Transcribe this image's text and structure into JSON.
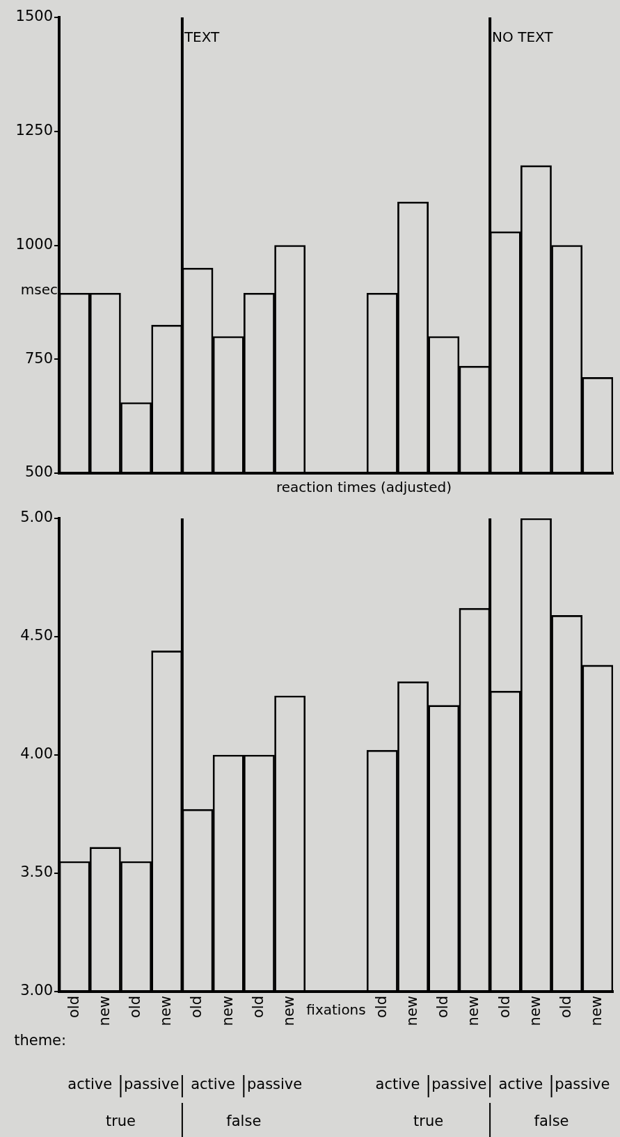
{
  "chart_data": [
    {
      "type": "bar",
      "xlabel": "reaction times (adjusted)",
      "ylabel": "msec",
      "categories": [
        null,
        null,
        null,
        null,
        null,
        null,
        null,
        null,
        null,
        null,
        null,
        null,
        null,
        null,
        null,
        null,
        null,
        null
      ],
      "series": [
        {
          "color": "#000000",
          "values": [
            895,
            895,
            655,
            825,
            950,
            800,
            895,
            1000,
            null,
            null,
            895,
            1095,
            800,
            735,
            1030,
            1175,
            1000,
            710
          ]
        }
      ],
      "ylim": [
        500,
        1500
      ],
      "yticks": [
        500,
        750,
        1000,
        1250,
        1500
      ],
      "grid": false,
      "legend": false,
      "tick_labels": "y",
      "annotations": [
        "TEXT",
        "NO TEXT"
      ]
    },
    {
      "type": "bar",
      "xlabel": "fixations",
      "categories": [
        "old",
        "new",
        "old",
        "new",
        "old",
        "new",
        "old",
        "new",
        null,
        null,
        "old",
        "new",
        "old",
        "new",
        "old",
        "new",
        "old",
        "new"
      ],
      "series": [
        {
          "color": "#000000",
          "values": [
            3.55,
            3.61,
            3.55,
            4.44,
            3.77,
            4.0,
            4.0,
            4.25,
            null,
            null,
            4.02,
            4.31,
            4.21,
            4.62,
            4.27,
            5.0,
            4.59,
            4.38
          ]
        }
      ],
      "ylim": [
        3,
        5
      ],
      "yticks": [
        {
          "value": 3,
          "label": "3.00"
        },
        {
          "value": 3.5,
          "label": "3.50"
        },
        {
          "value": 4,
          "label": "4.00"
        },
        {
          "value": 4.5,
          "label": "4.50"
        },
        {
          "value": 5,
          "label": "5.00"
        }
      ],
      "grid": false,
      "legend": false,
      "annotations": [
        "theme:",
        "active",
        "passive",
        "active",
        "passive",
        "active",
        "passive",
        "active",
        "passive",
        "true",
        "false",
        "true",
        "false"
      ]
    }
  ]
}
